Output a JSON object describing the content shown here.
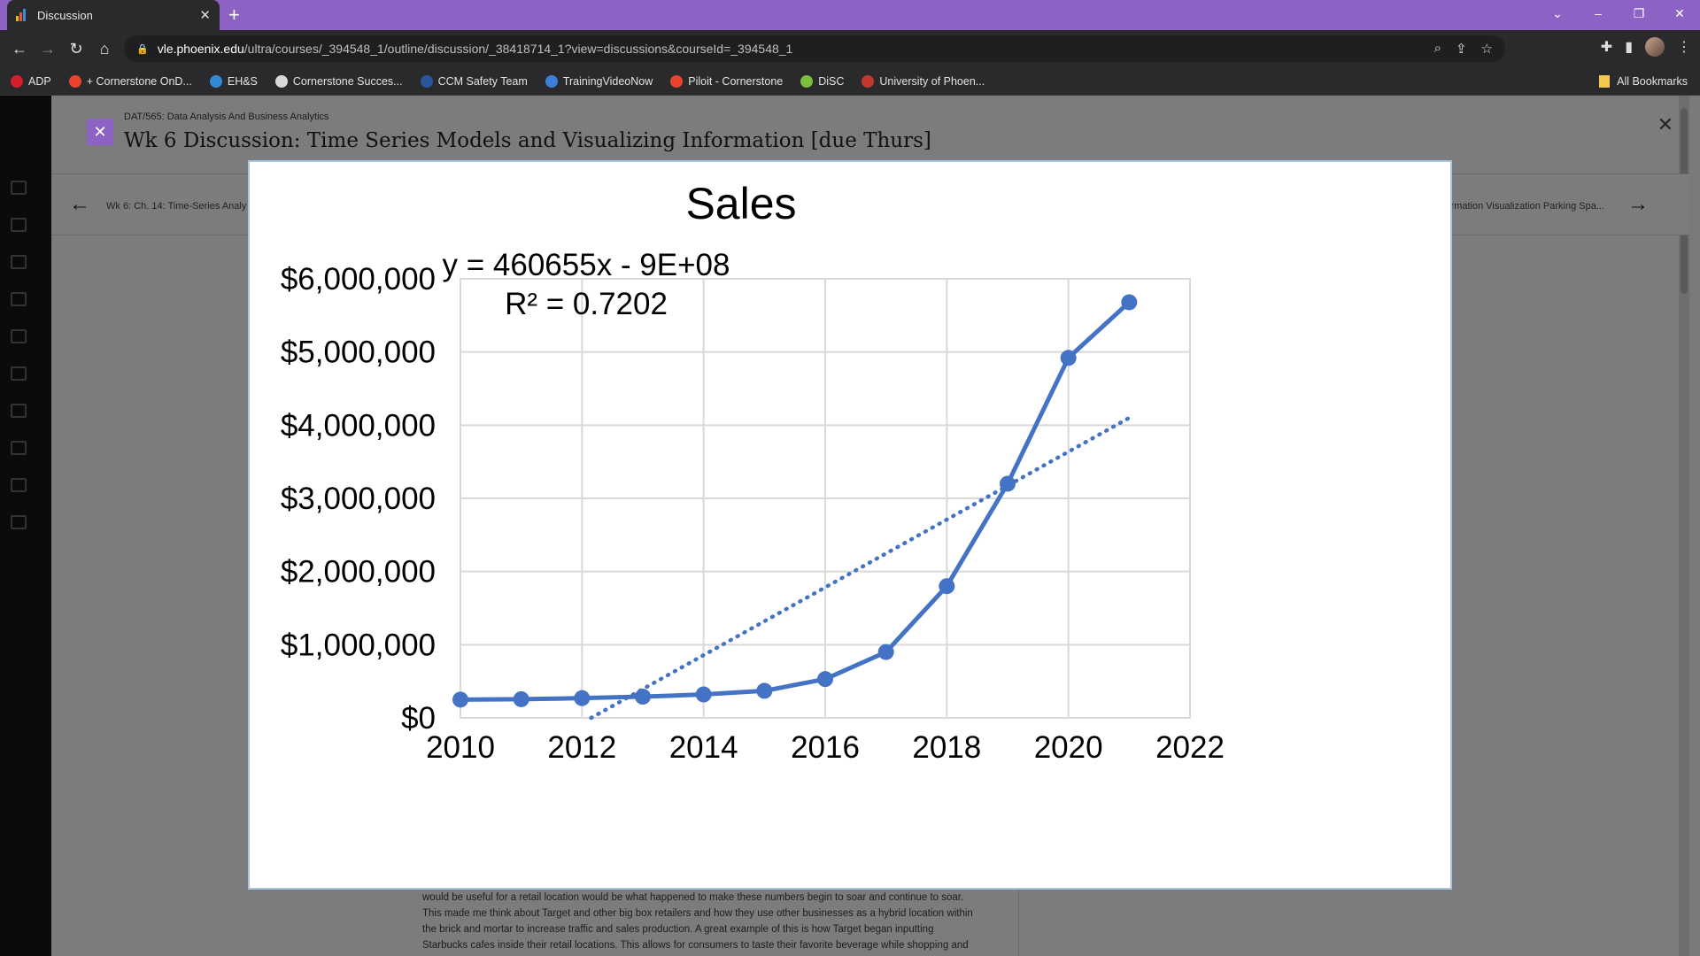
{
  "browser": {
    "tab_title": "Discussion",
    "url_host": "vle.phoenix.edu",
    "url_path": "/ultra/courses/_394548_1/outline/discussion/_38418714_1?view=discussions&courseId=_394548_1",
    "bookmarks": [
      {
        "label": "ADP",
        "color": "#d4202c"
      },
      {
        "label": "+ Cornerstone OnD...",
        "color": "#e8432f"
      },
      {
        "label": "EH&S",
        "color": "#2f8ad8"
      },
      {
        "label": "Cornerstone Succes...",
        "color": "#d9d9d9"
      },
      {
        "label": "CCM Safety Team",
        "color": "#2b579a"
      },
      {
        "label": "TrainingVideoNow",
        "color": "#3c7fd9"
      },
      {
        "label": "Piloit - Cornerstone",
        "color": "#e8432f"
      },
      {
        "label": "DiSC",
        "color": "#7bbf3a"
      },
      {
        "label": "University of Phoen...",
        "color": "#c0392b"
      }
    ],
    "all_bookmarks": "All Bookmarks"
  },
  "page": {
    "course_code": "DAT/565: Data Analysis And Business Analytics",
    "title": "Wk 6 Discussion: Time Series Models and Visualizing Information [due Thurs]",
    "prev_label": "Wk 6: Ch. 14: Time-Series Analy",
    "next_label": "nformation Visualization Parking Spa...",
    "body_lines": [
      "would be useful for a retail location would be what happened to make these numbers begin to soar and continue to soar.",
      "This made me think about Target and other big box retailers and how they use other businesses as a hybrid location within",
      "the brick and mortar to increase traffic and sales production. A great example of this is how Target began inputting",
      "Starbucks cafes inside their retail locations. This allows for consumers to taste their favorite beverage while shopping and"
    ]
  },
  "chart_data": {
    "type": "scatter",
    "title": "Sales",
    "xlim": [
      2010,
      2022
    ],
    "ylim": [
      0,
      6000000
    ],
    "x_ticks": [
      2010,
      2012,
      2014,
      2016,
      2018,
      2020,
      2022
    ],
    "x_tick_labels": [
      "2010",
      "2012",
      "2014",
      "2016",
      "2018",
      "2020",
      "2022"
    ],
    "y_ticks": [
      0,
      1000000,
      2000000,
      3000000,
      4000000,
      5000000,
      6000000
    ],
    "y_tick_labels": [
      "$0",
      "$1,000,000",
      "$2,000,000",
      "$3,000,000",
      "$4,000,000",
      "$5,000,000",
      "$6,000,000"
    ],
    "grid": true,
    "series": [
      {
        "x": [
          2010,
          2011,
          2012,
          2013,
          2014,
          2015,
          2016,
          2017,
          2018,
          2019,
          2020,
          2021
        ],
        "y": [
          250000,
          255000,
          270000,
          290000,
          320000,
          370000,
          530000,
          900000,
          1800000,
          3200000,
          4920000,
          5680000
        ],
        "color": "#4472c4"
      }
    ],
    "trendline": {
      "equation": "y = 460655x - 9E+08",
      "r_squared": "R² = 0.7202",
      "x_range": [
        2012.15,
        2021
      ],
      "y_range": [
        0,
        4100000
      ],
      "style": "dotted",
      "color": "#4472c4"
    }
  }
}
